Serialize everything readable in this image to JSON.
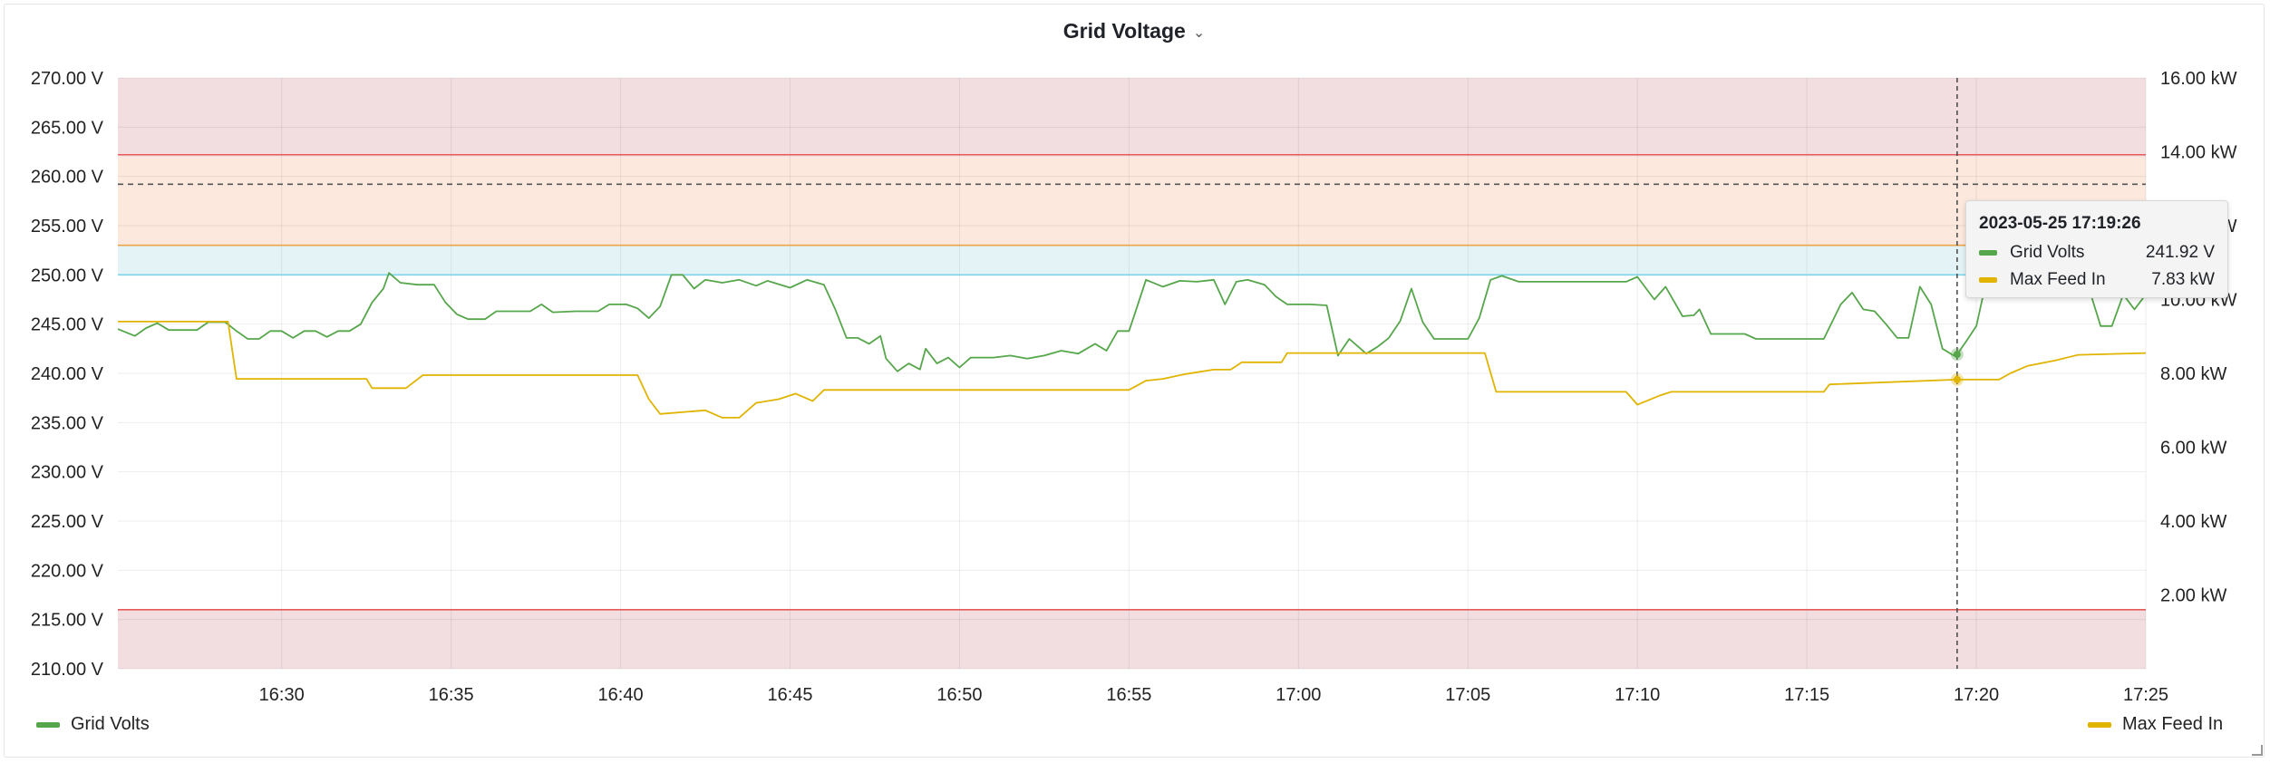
{
  "panel": {
    "title": "Grid Voltage"
  },
  "colors": {
    "grid_volts": "#56a64b",
    "max_feed_in": "#e0b400",
    "band_red": "#f2dde0",
    "band_orange": "#fce8dd",
    "band_blue": "#e4f4f6",
    "threshold_red": "#e85a5a",
    "threshold_orange": "#e8a54a",
    "threshold_blue": "#7fd3e8"
  },
  "chart_data": {
    "type": "line",
    "title": "Grid Voltage",
    "x_ticks": [
      "16:30",
      "16:35",
      "16:40",
      "16:45",
      "16:50",
      "16:55",
      "17:00",
      "17:05",
      "17:10",
      "17:15",
      "17:20",
      "17:25"
    ],
    "x_range": [
      "16:25:10",
      "17:25:00"
    ],
    "y_left": {
      "unit": "V",
      "range": [
        210,
        270
      ],
      "ticks": [
        "270.00 V",
        "265.00 V",
        "260.00 V",
        "255.00 V",
        "250.00 V",
        "245.00 V",
        "240.00 V",
        "235.00 V",
        "230.00 V",
        "225.00 V",
        "220.00 V",
        "215.00 V",
        "210.00 V"
      ]
    },
    "y_right": {
      "unit": "kW",
      "range": [
        0,
        16
      ],
      "ticks": [
        "16.00 kW",
        "14.00 kW",
        "12.00 kW",
        "10.00 kW",
        "8.00 kW",
        "6.00 kW",
        "4.00 kW",
        "2.00 kW"
      ]
    },
    "grid": true,
    "legend_left": "Grid Volts",
    "legend_right": "Max Feed In",
    "thresholds_v": [
      {
        "from": 262,
        "to": 270,
        "style": "red"
      },
      {
        "from": 253,
        "to": 262,
        "style": "orange"
      },
      {
        "from": 250,
        "to": 253,
        "style": "blue"
      },
      {
        "from": 210,
        "to": 216,
        "style": "red"
      }
    ],
    "threshold_lines_v": [
      {
        "value": 262.2,
        "style": "red"
      },
      {
        "value": 259.2,
        "style": "dashed"
      },
      {
        "value": 253.0,
        "style": "orange"
      },
      {
        "value": 250.0,
        "style": "blue"
      },
      {
        "value": 216.0,
        "style": "red"
      }
    ],
    "series": [
      {
        "name": "Grid Volts",
        "axis": "left",
        "points": [
          [
            "16:25:10",
            244.5
          ],
          [
            "16:25:40",
            243.8
          ],
          [
            "16:26:00",
            244.6
          ],
          [
            "16:26:20",
            245.1
          ],
          [
            "16:26:40",
            244.4
          ],
          [
            "16:27:30",
            244.4
          ],
          [
            "16:27:50",
            245.2
          ],
          [
            "16:28:20",
            245.2
          ],
          [
            "16:28:40",
            244.3
          ],
          [
            "16:29:00",
            243.5
          ],
          [
            "16:29:20",
            243.5
          ],
          [
            "16:29:40",
            244.3
          ],
          [
            "16:30:00",
            244.3
          ],
          [
            "16:30:20",
            243.6
          ],
          [
            "16:30:40",
            244.3
          ],
          [
            "16:31:00",
            244.3
          ],
          [
            "16:31:20",
            243.7
          ],
          [
            "16:31:40",
            244.3
          ],
          [
            "16:32:00",
            244.3
          ],
          [
            "16:32:20",
            245.0
          ],
          [
            "16:32:40",
            247.2
          ],
          [
            "16:33:00",
            248.6
          ],
          [
            "16:33:10",
            250.2
          ],
          [
            "16:33:30",
            249.2
          ],
          [
            "16:34:00",
            249.0
          ],
          [
            "16:34:30",
            249.0
          ],
          [
            "16:34:50",
            247.2
          ],
          [
            "16:35:10",
            246.0
          ],
          [
            "16:35:30",
            245.5
          ],
          [
            "16:36:00",
            245.5
          ],
          [
            "16:36:20",
            246.3
          ],
          [
            "16:37:20",
            246.3
          ],
          [
            "16:37:40",
            247.0
          ],
          [
            "16:38:00",
            246.2
          ],
          [
            "16:38:40",
            246.3
          ],
          [
            "16:39:20",
            246.3
          ],
          [
            "16:39:40",
            247.0
          ],
          [
            "16:40:10",
            247.0
          ],
          [
            "16:40:30",
            246.6
          ],
          [
            "16:40:50",
            245.6
          ],
          [
            "16:41:10",
            246.8
          ],
          [
            "16:41:30",
            250.0
          ],
          [
            "16:41:50",
            250.0
          ],
          [
            "16:42:10",
            248.6
          ],
          [
            "16:42:30",
            249.5
          ],
          [
            "16:43:00",
            249.2
          ],
          [
            "16:43:30",
            249.5
          ],
          [
            "16:44:00",
            248.9
          ],
          [
            "16:44:20",
            249.4
          ],
          [
            "16:45:00",
            248.7
          ],
          [
            "16:45:30",
            249.5
          ],
          [
            "16:46:00",
            249.0
          ],
          [
            "16:46:20",
            246.5
          ],
          [
            "16:46:40",
            243.6
          ],
          [
            "16:47:00",
            243.6
          ],
          [
            "16:47:20",
            243.0
          ],
          [
            "16:47:40",
            243.8
          ],
          [
            "16:47:50",
            241.5
          ],
          [
            "16:48:10",
            240.2
          ],
          [
            "16:48:30",
            241.0
          ],
          [
            "16:48:50",
            240.4
          ],
          [
            "16:49:00",
            242.5
          ],
          [
            "16:49:20",
            241.0
          ],
          [
            "16:49:40",
            241.6
          ],
          [
            "16:50:00",
            240.6
          ],
          [
            "16:50:20",
            241.6
          ],
          [
            "16:51:00",
            241.6
          ],
          [
            "16:51:30",
            241.8
          ],
          [
            "16:52:00",
            241.5
          ],
          [
            "16:52:30",
            241.8
          ],
          [
            "16:53:00",
            242.3
          ],
          [
            "16:53:30",
            242.0
          ],
          [
            "16:54:00",
            243.0
          ],
          [
            "16:54:20",
            242.3
          ],
          [
            "16:54:40",
            244.3
          ],
          [
            "16:55:00",
            244.3
          ],
          [
            "16:55:10",
            246.0
          ],
          [
            "16:55:30",
            249.5
          ],
          [
            "16:56:00",
            248.8
          ],
          [
            "16:56:30",
            249.4
          ],
          [
            "16:57:00",
            249.3
          ],
          [
            "16:57:30",
            249.5
          ],
          [
            "16:57:50",
            247.0
          ],
          [
            "16:58:10",
            249.3
          ],
          [
            "16:58:30",
            249.5
          ],
          [
            "16:59:00",
            249.0
          ],
          [
            "16:59:20",
            247.8
          ],
          [
            "16:59:40",
            247.0
          ],
          [
            "17:00:20",
            247.0
          ],
          [
            "17:00:50",
            246.9
          ],
          [
            "17:01:10",
            241.8
          ],
          [
            "17:01:30",
            243.5
          ],
          [
            "17:02:00",
            242.0
          ],
          [
            "17:02:20",
            242.7
          ],
          [
            "17:02:40",
            243.6
          ],
          [
            "17:03:00",
            245.3
          ],
          [
            "17:03:20",
            248.6
          ],
          [
            "17:03:40",
            245.2
          ],
          [
            "17:04:00",
            243.5
          ],
          [
            "17:05:00",
            243.5
          ],
          [
            "17:05:20",
            245.6
          ],
          [
            "17:05:40",
            249.5
          ],
          [
            "17:06:00",
            249.9
          ],
          [
            "17:06:30",
            249.3
          ],
          [
            "17:08:00",
            249.3
          ],
          [
            "17:09:40",
            249.3
          ],
          [
            "17:10:00",
            249.8
          ],
          [
            "17:10:30",
            247.5
          ],
          [
            "17:10:50",
            248.8
          ],
          [
            "17:11:20",
            245.8
          ],
          [
            "17:11:40",
            245.9
          ],
          [
            "17:11:50",
            246.5
          ],
          [
            "17:12:10",
            244.0
          ],
          [
            "17:13:10",
            244.0
          ],
          [
            "17:13:30",
            243.5
          ],
          [
            "17:14:00",
            243.5
          ],
          [
            "17:15:00",
            243.5
          ],
          [
            "17:15:30",
            243.5
          ],
          [
            "17:16:00",
            247.0
          ],
          [
            "17:16:20",
            248.2
          ],
          [
            "17:16:40",
            246.5
          ],
          [
            "17:17:00",
            246.3
          ],
          [
            "17:17:20",
            245.0
          ],
          [
            "17:17:40",
            243.6
          ],
          [
            "17:18:00",
            243.6
          ],
          [
            "17:18:20",
            248.8
          ],
          [
            "17:18:40",
            247.0
          ],
          [
            "17:19:00",
            242.5
          ],
          [
            "17:19:20",
            241.8
          ],
          [
            "17:19:26",
            241.92
          ],
          [
            "17:19:45",
            243.5
          ],
          [
            "17:20:00",
            244.8
          ],
          [
            "17:20:20",
            250.0
          ],
          [
            "17:20:40",
            249.5
          ],
          [
            "17:21:10",
            249.4
          ],
          [
            "17:23:20",
            248.5
          ],
          [
            "17:23:40",
            244.8
          ],
          [
            "17:24:00",
            244.8
          ],
          [
            "17:24:20",
            248.0
          ],
          [
            "17:24:40",
            246.5
          ],
          [
            "17:25:00",
            248.0
          ]
        ]
      },
      {
        "name": "Max Feed In",
        "axis": "right",
        "points": [
          [
            "16:25:10",
            9.4
          ],
          [
            "16:28:25",
            9.4
          ],
          [
            "16:28:40",
            7.85
          ],
          [
            "16:32:30",
            7.85
          ],
          [
            "16:32:40",
            7.6
          ],
          [
            "16:33:40",
            7.6
          ],
          [
            "16:34:10",
            7.95
          ],
          [
            "16:40:30",
            7.95
          ],
          [
            "16:40:50",
            7.3
          ],
          [
            "16:41:10",
            6.9
          ],
          [
            "16:42:30",
            7.0
          ],
          [
            "16:43:00",
            6.8
          ],
          [
            "16:43:30",
            6.8
          ],
          [
            "16:44:00",
            7.2
          ],
          [
            "16:44:40",
            7.3
          ],
          [
            "16:45:10",
            7.45
          ],
          [
            "16:45:40",
            7.25
          ],
          [
            "16:46:00",
            7.55
          ],
          [
            "16:55:00",
            7.55
          ],
          [
            "16:55:30",
            7.8
          ],
          [
            "16:56:00",
            7.85
          ],
          [
            "16:56:40",
            7.98
          ],
          [
            "16:57:30",
            8.1
          ],
          [
            "16:58:00",
            8.1
          ],
          [
            "16:58:20",
            8.3
          ],
          [
            "16:59:30",
            8.3
          ],
          [
            "16:59:40",
            8.55
          ],
          [
            "17:05:30",
            8.55
          ],
          [
            "17:05:50",
            7.5
          ],
          [
            "17:09:40",
            7.5
          ],
          [
            "17:10:00",
            7.15
          ],
          [
            "17:10:40",
            7.4
          ],
          [
            "17:11:00",
            7.5
          ],
          [
            "17:15:30",
            7.5
          ],
          [
            "17:15:40",
            7.7
          ],
          [
            "17:19:26",
            7.83
          ],
          [
            "17:20:40",
            7.83
          ],
          [
            "17:21:00",
            8.0
          ],
          [
            "17:21:30",
            8.2
          ],
          [
            "17:22:20",
            8.35
          ],
          [
            "17:23:00",
            8.5
          ],
          [
            "17:25:00",
            8.55
          ]
        ]
      }
    ],
    "hover": {
      "time": "17:19:26",
      "grid_volts": 241.92,
      "max_feed_in": 7.83
    }
  },
  "tooltip": {
    "time": "2023-05-25 17:19:26",
    "rows": [
      {
        "name": "Grid Volts",
        "value": "241.92 V"
      },
      {
        "name": "Max Feed In",
        "value": "7.83 kW"
      }
    ]
  }
}
